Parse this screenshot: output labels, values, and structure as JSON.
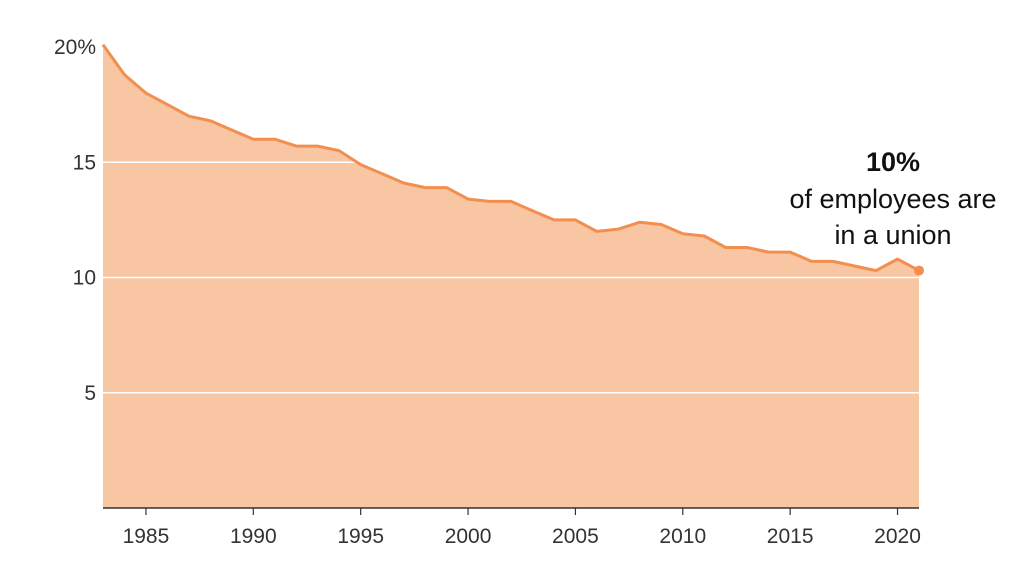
{
  "chart_data": {
    "type": "area",
    "x": [
      1983,
      1984,
      1985,
      1986,
      1987,
      1988,
      1989,
      1990,
      1991,
      1992,
      1993,
      1994,
      1995,
      1996,
      1997,
      1998,
      1999,
      2000,
      2001,
      2002,
      2003,
      2004,
      2005,
      2006,
      2007,
      2008,
      2009,
      2010,
      2011,
      2012,
      2013,
      2014,
      2015,
      2016,
      2017,
      2018,
      2019,
      2020,
      2021
    ],
    "series": [
      {
        "values": [
          20.1,
          18.8,
          18.0,
          17.5,
          17.0,
          16.8,
          16.4,
          16.0,
          16.0,
          15.7,
          15.7,
          15.5,
          14.9,
          14.5,
          14.1,
          13.9,
          13.9,
          13.4,
          13.3,
          13.3,
          12.9,
          12.5,
          12.5,
          12.0,
          12.1,
          12.4,
          12.3,
          11.9,
          11.8,
          11.3,
          11.3,
          11.1,
          11.1,
          10.7,
          10.7,
          10.5,
          10.3,
          10.8,
          10.3
        ]
      }
    ],
    "xlabel": "",
    "ylabel": "",
    "xlim": [
      1983,
      2021
    ],
    "ylim": [
      0,
      20
    ],
    "x_ticks": [
      "1985",
      "1990",
      "1995",
      "2000",
      "2005",
      "2010",
      "2015",
      "2020"
    ],
    "x_tick_values": [
      1985,
      1990,
      1995,
      2000,
      2005,
      2010,
      2015,
      2020
    ],
    "y_ticks": [
      "20%",
      "15",
      "10",
      "5"
    ],
    "y_tick_values": [
      20,
      15,
      10,
      5
    ],
    "grid": true,
    "colors": {
      "line": "#f28f4f",
      "fill": "#f8c6a3",
      "grid": "#ffffff",
      "axis": "#333333"
    },
    "annotation": {
      "value": "10%",
      "line1": "of employees are",
      "line2": "in a union",
      "x": 2021,
      "y": 10.3
    }
  }
}
